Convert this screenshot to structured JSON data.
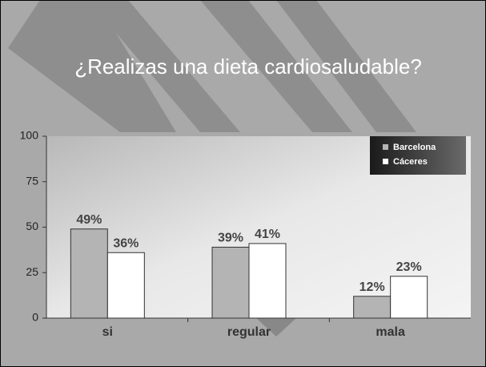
{
  "chart_data": {
    "type": "bar",
    "title": "¿Realizas una dieta cardiosaludable?",
    "categories": [
      "si",
      "regular",
      "mala"
    ],
    "series": [
      {
        "name": "Barcelona",
        "color": "#b4b4b4",
        "values": [
          49,
          39,
          12
        ],
        "value_labels": [
          "49%",
          "39%",
          "12%"
        ]
      },
      {
        "name": "Cáceres",
        "color": "#ffffff",
        "values": [
          36,
          41,
          23
        ],
        "value_labels": [
          "36%",
          "41%",
          "23%"
        ]
      }
    ],
    "ylim": [
      0,
      100
    ],
    "yticks": [
      0,
      25,
      50,
      75,
      100
    ],
    "legend": "top-right"
  }
}
